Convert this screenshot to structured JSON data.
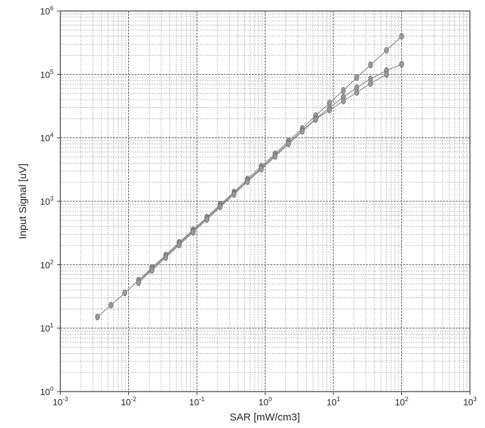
{
  "chart_data": {
    "type": "scatter",
    "title": "",
    "xlabel": "SAR [mW/cm3]",
    "ylabel": "Input Signal [uV]",
    "xscale": "log",
    "yscale": "log",
    "xlim": [
      0.001,
      1000
    ],
    "ylim": [
      1,
      1000000
    ],
    "grid": true,
    "x_ticks": [
      {
        "value": 0.001,
        "base": "10",
        "exp": "-3"
      },
      {
        "value": 0.01,
        "base": "10",
        "exp": "-2"
      },
      {
        "value": 0.1,
        "base": "10",
        "exp": "-1"
      },
      {
        "value": 1,
        "base": "10",
        "exp": "0"
      },
      {
        "value": 10,
        "base": "10",
        "exp": "1"
      },
      {
        "value": 100,
        "base": "10",
        "exp": "2"
      },
      {
        "value": 1000,
        "base": "10",
        "exp": "3"
      }
    ],
    "y_ticks": [
      {
        "value": 1,
        "base": "10",
        "exp": "0"
      },
      {
        "value": 10,
        "base": "10",
        "exp": "1"
      },
      {
        "value": 100,
        "base": "10",
        "exp": "2"
      },
      {
        "value": 1000,
        "base": "10",
        "exp": "3"
      },
      {
        "value": 10000,
        "base": "10",
        "exp": "4"
      },
      {
        "value": 100000,
        "base": "10",
        "exp": "5"
      },
      {
        "value": 1000000,
        "base": "10",
        "exp": "6"
      }
    ],
    "series": [
      {
        "color": "#8a8a8a",
        "x": [
          0.0035,
          0.0055,
          0.0088,
          0.014,
          0.022,
          0.035,
          0.055,
          0.088,
          0.14,
          0.22,
          0.35,
          0.55,
          0.88,
          1.4,
          2.2,
          3.5,
          5.5,
          8.8,
          14,
          22,
          35,
          60,
          100
        ],
        "y": [
          15,
          23,
          36,
          57,
          90,
          142,
          225,
          355,
          560,
          890,
          1400,
          2250,
          3550,
          5600,
          8900,
          14100,
          22400,
          35500,
          56000,
          89000,
          141000,
          240000,
          400000
        ]
      },
      {
        "color": "#8a8a8a",
        "x": [
          0.014,
          0.022,
          0.035,
          0.055,
          0.088,
          0.14,
          0.22,
          0.35,
          0.55,
          0.88,
          1.4,
          2.2,
          3.5,
          5.5,
          8.8,
          14,
          22,
          35,
          60,
          100
        ],
        "y": [
          55,
          86,
          136,
          215,
          340,
          540,
          850,
          1340,
          2120,
          3350,
          5300,
          8300,
          13000,
          20000,
          30000,
          44000,
          62000,
          85000,
          115000,
          145000
        ]
      },
      {
        "color": "#8a8a8a",
        "x": [
          0.014,
          0.022,
          0.035,
          0.055,
          0.088,
          0.14,
          0.22,
          0.35,
          0.55,
          0.88,
          1.4,
          2.2,
          3.5,
          5.5,
          8.8,
          14,
          22,
          35,
          60
        ],
        "y": [
          52,
          82,
          130,
          205,
          325,
          515,
          815,
          1290,
          2040,
          3220,
          5100,
          8050,
          12700,
          19500,
          27500,
          38000,
          52000,
          72000,
          100000
        ]
      }
    ]
  }
}
